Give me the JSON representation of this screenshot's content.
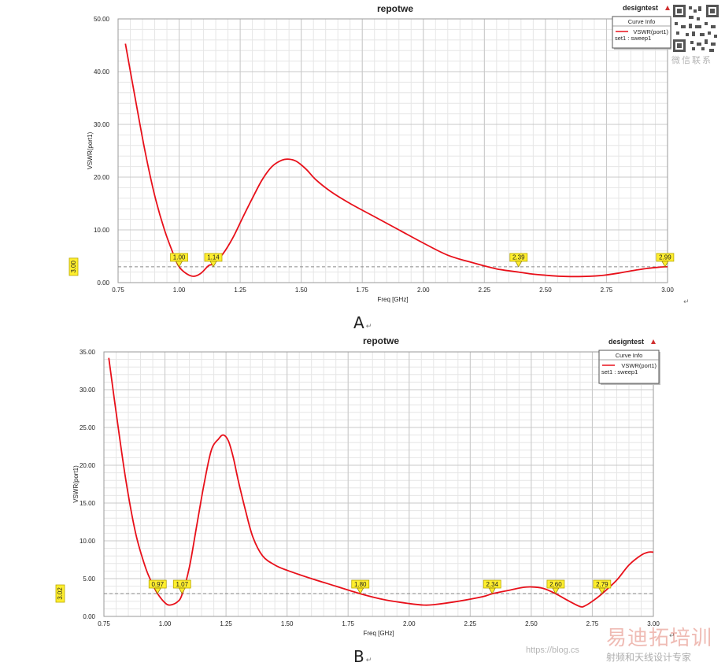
{
  "chart_data": [
    {
      "id": "A",
      "type": "line",
      "title": "repotwe",
      "design_name": "designtest",
      "xlabel": "Freq [GHz]",
      "ylabel": "VSWR(port1)",
      "xlim": [
        0.75,
        3.0
      ],
      "ylim": [
        0,
        50
      ],
      "xticks": [
        "0.75",
        "1.00",
        "1.25",
        "1.50",
        "1.75",
        "2.00",
        "2.25",
        "2.50",
        "2.75",
        "3.00"
      ],
      "yticks": [
        "0.00",
        "10.00",
        "20.00",
        "30.00",
        "40.00",
        "50.00"
      ],
      "grid": true,
      "legend": {
        "placement": "top-right",
        "title": "Curve Info",
        "entries": [
          {
            "name": "VSWR(port1)",
            "setup": "set1 : sweep1",
            "color": "#e8101a"
          }
        ]
      },
      "threshold": {
        "value": 3.0,
        "label": "3.00"
      },
      "markers": [
        {
          "x": 1.0,
          "label": "1.00"
        },
        {
          "x": 1.14,
          "label": "1.14"
        },
        {
          "x": 2.39,
          "label": "2.39"
        },
        {
          "x": 2.99,
          "label": "2.99"
        }
      ],
      "series": [
        {
          "name": "VSWR(port1)",
          "color": "#e8101a",
          "x": [
            0.78,
            0.82,
            0.86,
            0.9,
            0.94,
            0.98,
            1.0,
            1.03,
            1.06,
            1.09,
            1.12,
            1.14,
            1.18,
            1.22,
            1.26,
            1.3,
            1.34,
            1.38,
            1.42,
            1.45,
            1.48,
            1.52,
            1.56,
            1.62,
            1.7,
            1.8,
            1.9,
            2.0,
            2.1,
            2.2,
            2.3,
            2.39,
            2.45,
            2.5,
            2.56,
            2.62,
            2.68,
            2.74,
            2.8,
            2.86,
            2.92,
            2.96,
            2.99,
            3.0
          ],
          "y": [
            45.3,
            35,
            25,
            16.5,
            10,
            5,
            3,
            1.7,
            1.2,
            1.8,
            3.2,
            3.6,
            5.5,
            8.5,
            12.3,
            16,
            19.5,
            22,
            23.2,
            23.4,
            23.0,
            21.5,
            19.5,
            17.3,
            15,
            12.5,
            10,
            7.5,
            5.2,
            3.8,
            2.6,
            2.0,
            1.6,
            1.4,
            1.2,
            1.15,
            1.2,
            1.4,
            1.8,
            2.3,
            2.7,
            2.9,
            3.0,
            3.0
          ]
        }
      ]
    },
    {
      "id": "B",
      "type": "line",
      "title": "repotwe",
      "design_name": "designtest",
      "xlabel": "Freq [GHz]",
      "ylabel": "VSWR(port1)",
      "xlim": [
        0.75,
        3.0
      ],
      "ylim": [
        0,
        35
      ],
      "xticks": [
        "0.75",
        "1.00",
        "1.25",
        "1.50",
        "1.75",
        "2.00",
        "2.25",
        "2.50",
        "2.75",
        "3.00"
      ],
      "yticks": [
        "0.00",
        "5.00",
        "10.00",
        "15.00",
        "20.00",
        "25.00",
        "30.00",
        "35.00"
      ],
      "grid": true,
      "legend": {
        "placement": "top-right",
        "title": "Curve Info",
        "entries": [
          {
            "name": "VSWR(port1)",
            "setup": "set1 : sweep1",
            "color": "#e8101a"
          }
        ]
      },
      "threshold": {
        "value": 3.02,
        "label": "3.02"
      },
      "markers": [
        {
          "x": 0.97,
          "label": "0.97"
        },
        {
          "x": 1.07,
          "label": "1.07"
        },
        {
          "x": 1.8,
          "label": "1.80"
        },
        {
          "x": 2.34,
          "label": "2.34"
        },
        {
          "x": 2.6,
          "label": "2.60"
        },
        {
          "x": 2.79,
          "label": "2.79"
        }
      ],
      "series": [
        {
          "name": "VSWR(port1)",
          "color": "#e8101a",
          "x": [
            0.77,
            0.8,
            0.84,
            0.88,
            0.92,
            0.95,
            0.97,
            1.0,
            1.02,
            1.05,
            1.07,
            1.1,
            1.13,
            1.16,
            1.19,
            1.22,
            1.24,
            1.26,
            1.28,
            1.3,
            1.33,
            1.36,
            1.4,
            1.45,
            1.5,
            1.6,
            1.7,
            1.8,
            1.9,
            2.0,
            2.06,
            2.1,
            2.2,
            2.3,
            2.34,
            2.4,
            2.46,
            2.5,
            2.55,
            2.6,
            2.65,
            2.7,
            2.72,
            2.75,
            2.79,
            2.85,
            2.9,
            2.95,
            2.98,
            3.0
          ],
          "y": [
            34.2,
            27,
            18,
            11,
            6.5,
            4.2,
            3.0,
            1.8,
            1.5,
            1.9,
            2.9,
            6.5,
            12,
            17.5,
            22,
            23.5,
            24,
            23.2,
            21,
            18,
            14,
            10.5,
            8,
            6.8,
            6.1,
            5,
            4,
            3.0,
            2.2,
            1.7,
            1.5,
            1.55,
            2.0,
            2.6,
            3.0,
            3.4,
            3.8,
            3.9,
            3.7,
            3.0,
            2.1,
            1.3,
            1.4,
            2.0,
            3.0,
            4.8,
            6.8,
            8.1,
            8.5,
            8.5
          ]
        }
      ]
    }
  ],
  "captions": {
    "a": "A",
    "b": "B",
    "return_mark": "↵"
  },
  "watermark": {
    "qr_label": "微信联系",
    "logo": "易迪拓培训",
    "url": "https://blog.cs",
    "sub": "射频和天线设计专家"
  }
}
